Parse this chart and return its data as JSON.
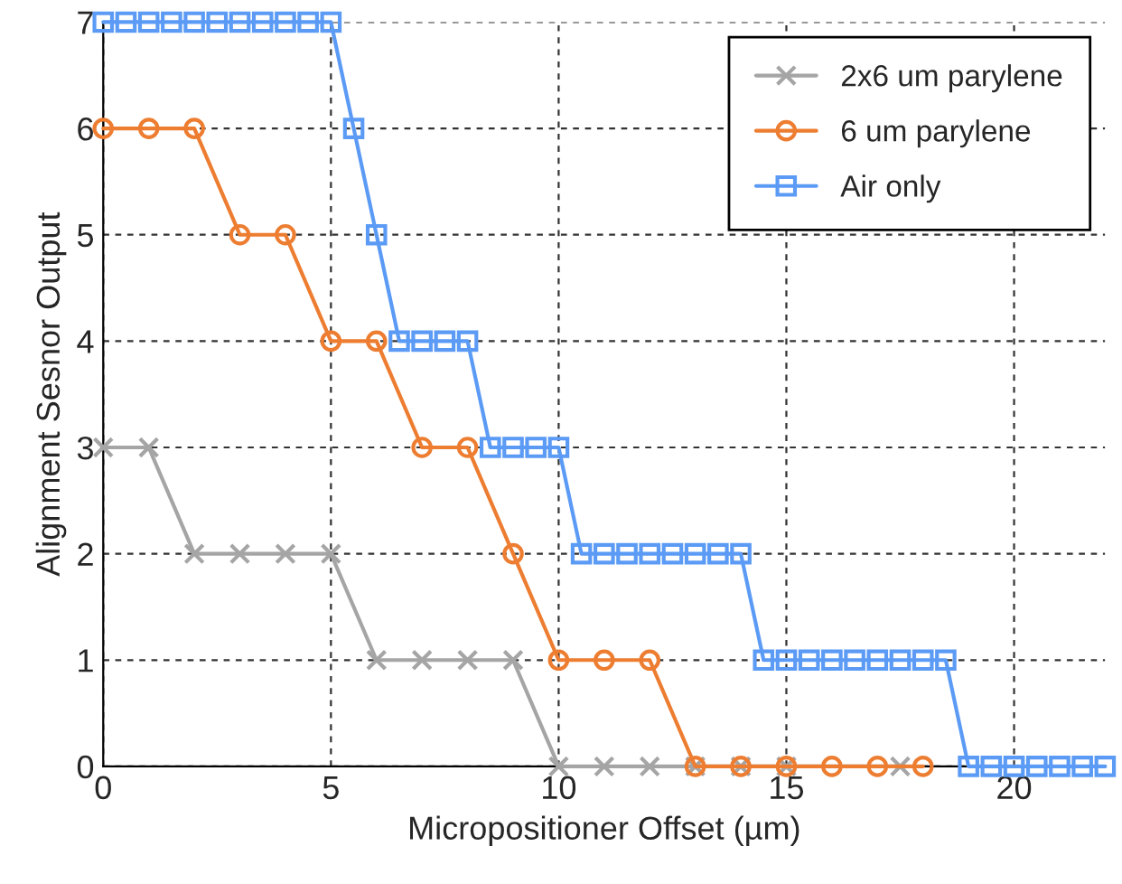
{
  "chart_data": {
    "type": "line",
    "xlabel": "Micropositioner Offset (µm)",
    "ylabel": "Alignment Sesnor Output",
    "xlim": [
      0,
      22
    ],
    "xticks": [
      0,
      5,
      10,
      15,
      20
    ],
    "ylim": [
      0,
      7
    ],
    "yticks": [
      0,
      1,
      2,
      3,
      4,
      5,
      6,
      7
    ],
    "grid": true,
    "legend": "top right",
    "series": [
      {
        "name": "2x6 um parylene",
        "color": "#a5a5a5",
        "marker": "cross",
        "x": [
          0,
          1,
          2,
          3,
          4,
          5,
          6,
          7,
          8,
          9,
          10,
          11,
          12,
          13,
          14,
          15,
          17.5
        ],
        "values": [
          3,
          3,
          2,
          2,
          2,
          2,
          1,
          1,
          1,
          1,
          0,
          0,
          0,
          0,
          0,
          0,
          0
        ]
      },
      {
        "name": "6 um parylene",
        "color": "#ed7d31",
        "marker": "circle",
        "x": [
          0,
          1,
          2,
          3,
          4,
          5,
          6,
          7,
          8,
          9,
          10,
          11,
          12,
          13,
          14,
          15,
          16,
          17,
          18
        ],
        "values": [
          6,
          6,
          6,
          5,
          5,
          4,
          4,
          3,
          3,
          2,
          1,
          1,
          1,
          0,
          0,
          0,
          0,
          0,
          0
        ]
      },
      {
        "name": "Air only",
        "color": "#5b9bf5",
        "marker": "square",
        "x": [
          0,
          0.5,
          1,
          1.5,
          2,
          2.5,
          3,
          3.5,
          4,
          4.5,
          5,
          5.5,
          6,
          6.5,
          7,
          7.5,
          8,
          8.5,
          9,
          9.5,
          10,
          10.5,
          11,
          11.5,
          12,
          12.5,
          13,
          13.5,
          14,
          14.5,
          15,
          15.5,
          16,
          16.5,
          17,
          17.5,
          18,
          18.5,
          19,
          19.5,
          20,
          20.5,
          21,
          21.5,
          22
        ],
        "values": [
          7,
          7,
          7,
          7,
          7,
          7,
          7,
          7,
          7,
          7,
          7,
          6,
          5,
          4,
          4,
          4,
          4,
          3,
          3,
          3,
          3,
          2,
          2,
          2,
          2,
          2,
          2,
          2,
          2,
          1,
          1,
          1,
          1,
          1,
          1,
          1,
          1,
          1,
          0,
          0,
          0,
          0,
          0,
          0,
          0
        ]
      }
    ]
  }
}
